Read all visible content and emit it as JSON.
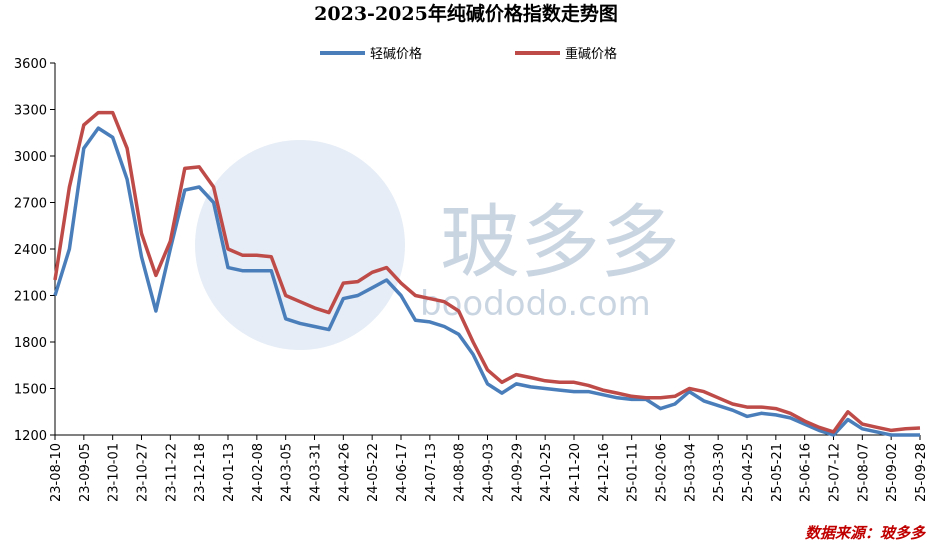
{
  "chart_data": {
    "type": "line",
    "title": "2023-2025年纯碱价格指数走势图",
    "source": "数据来源：玻多多",
    "watermark": "玻多多",
    "watermark_url": "boododo.com",
    "categories": [
      "23-08-10",
      null,
      "23-09-05",
      null,
      "23-10-01",
      null,
      "23-10-27",
      null,
      "23-11-22",
      null,
      "23-12-18",
      null,
      "24-01-13",
      null,
      "24-02-08",
      null,
      "24-03-05",
      null,
      "24-03-31",
      null,
      "24-04-26",
      null,
      "24-05-22",
      null,
      "24-06-17",
      null,
      "24-07-13",
      null,
      "24-08-08",
      null,
      "24-09-03",
      null,
      "24-09-29",
      null,
      "24-10-25",
      null,
      "24-11-20",
      null,
      "24-12-16",
      null,
      "25-01-11",
      null,
      "25-02-06",
      null,
      "25-03-04",
      null,
      "25-03-30",
      null,
      "25-04-25",
      null,
      "25-05-21",
      null,
      "25-06-16",
      null,
      "25-07-12",
      null,
      "25-08-07",
      null,
      "25-09-02",
      null,
      "25-09-28"
    ],
    "series": [
      {
        "name": "轻碱价格",
        "color": "#4a7ebb",
        "values": [
          2100,
          2400,
          3050,
          3180,
          3120,
          2850,
          2350,
          2000,
          2400,
          2780,
          2800,
          2700,
          2280,
          2260,
          2260,
          2260,
          1950,
          1920,
          1900,
          1880,
          2080,
          2100,
          2150,
          2200,
          2100,
          1940,
          1930,
          1900,
          1850,
          1720,
          1530,
          1470,
          1530,
          1510,
          1500,
          1490,
          1480,
          1480,
          1460,
          1440,
          1430,
          1430,
          1370,
          1400,
          1480,
          1420,
          1390,
          1360,
          1320,
          1340,
          1330,
          1310,
          1270,
          1230,
          1200,
          1300,
          1240,
          1220,
          1200,
          1200,
          1200
        ]
      },
      {
        "name": "重碱价格",
        "color": "#be4b48",
        "values": [
          2200,
          2800,
          3200,
          3280,
          3280,
          3050,
          2500,
          2230,
          2450,
          2920,
          2930,
          2800,
          2400,
          2360,
          2360,
          2350,
          2100,
          2060,
          2020,
          1990,
          2180,
          2190,
          2250,
          2280,
          2180,
          2100,
          2080,
          2060,
          2000,
          1800,
          1620,
          1540,
          1590,
          1570,
          1550,
          1540,
          1540,
          1520,
          1490,
          1470,
          1450,
          1440,
          1440,
          1450,
          1500,
          1480,
          1440,
          1400,
          1380,
          1380,
          1370,
          1340,
          1290,
          1250,
          1220,
          1350,
          1270,
          1250,
          1230,
          1240,
          1245
        ]
      }
    ],
    "ylim": [
      1200,
      3600
    ],
    "yticks": [
      1200,
      1500,
      1800,
      2100,
      2400,
      2700,
      3000,
      3300,
      3600
    ],
    "legend": "top"
  }
}
